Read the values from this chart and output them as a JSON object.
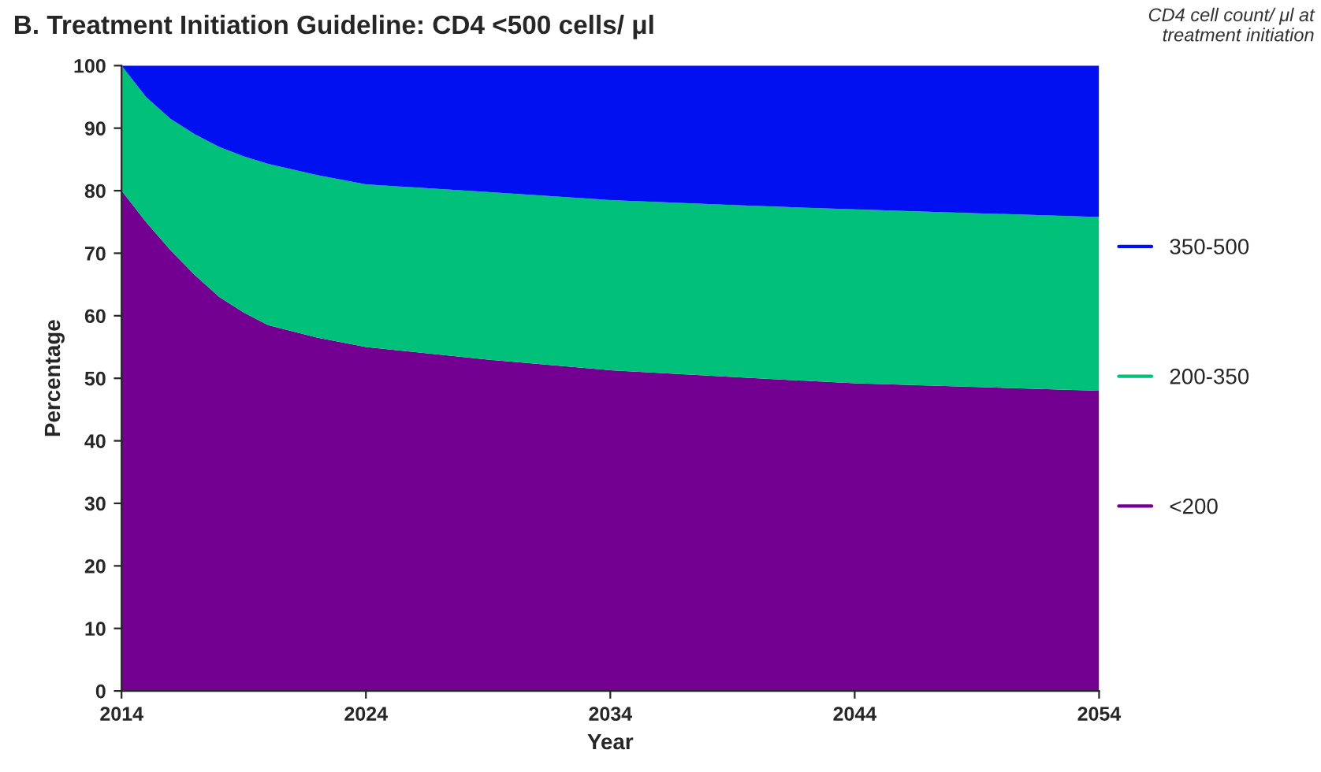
{
  "chart_data": {
    "type": "area",
    "title": "B. Treatment Initiation Guideline: CD4 <500 cells/ μl",
    "xlabel": "Year",
    "ylabel": "Percentage",
    "legend_title": "CD4 cell count/ μl at\ntreatment initiation",
    "stacked": true,
    "legend": "right",
    "grid": false,
    "x": [
      2014,
      2015,
      2016,
      2017,
      2018,
      2019,
      2020,
      2022,
      2024,
      2029,
      2034,
      2039,
      2044,
      2049,
      2054
    ],
    "series": [
      {
        "name": "<200",
        "color": "#730090",
        "values": [
          80,
          75,
          70.5,
          66.5,
          63,
          60.5,
          58.5,
          56.5,
          55,
          53,
          51.3,
          50.2,
          49.2,
          48.6,
          48
        ]
      },
      {
        "name": "200-350",
        "color": "#00c07a",
        "values": [
          20,
          20,
          21,
          22.5,
          24,
          25,
          25.8,
          26,
          26,
          26.8,
          27.2,
          27.5,
          27.8,
          27.8,
          27.8
        ]
      },
      {
        "name": "350-500",
        "color": "#0010f0",
        "values": [
          0,
          5,
          8.5,
          11,
          13,
          14.5,
          15.7,
          17.5,
          19,
          20.2,
          21.5,
          22.3,
          23,
          23.6,
          24.2
        ]
      }
    ],
    "xlim": [
      2014,
      2054
    ],
    "xticks": [
      2014,
      2024,
      2034,
      2044,
      2054
    ],
    "ylim": [
      0,
      100
    ],
    "yticks": [
      0,
      10,
      20,
      30,
      40,
      50,
      60,
      70,
      80,
      90,
      100
    ]
  }
}
